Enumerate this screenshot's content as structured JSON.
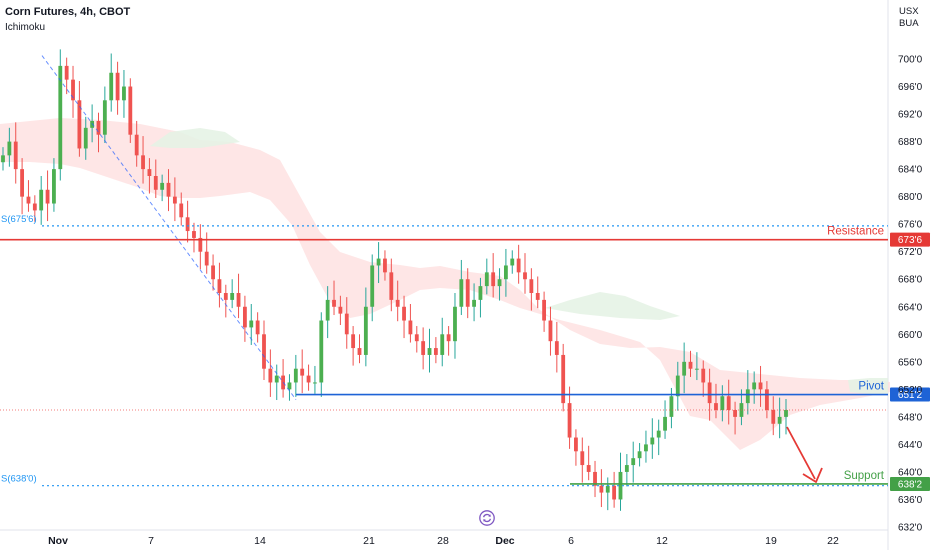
{
  "header": {
    "title": "Corn Futures, 4h, CBOT",
    "indicator": "Ichimoku",
    "currency": "USX",
    "unit": "BUA"
  },
  "colors": {
    "bull": "#26a69a",
    "bull_body": "#4caf50",
    "bear": "#ef5350",
    "resistance": "#e53935",
    "pivot": "#1e63d6",
    "support": "#43a047",
    "cloud_bear": "#fddede",
    "cloud_bull": "#e4f2e4",
    "dotted_blue": "#2196f3"
  },
  "icons": {
    "sync": "sync-icon",
    "arrow": "down-right-arrow"
  },
  "chart_data": {
    "type": "candlestick",
    "y_axis": {
      "range": [
        630,
        704
      ],
      "ticks": [
        "700'0",
        "696'0",
        "692'0",
        "688'0",
        "684'0",
        "680'0",
        "676'0",
        "672'0",
        "668'0",
        "664'0",
        "660'0",
        "656'0",
        "652'0",
        "648'0",
        "644'0",
        "640'0",
        "636'0",
        "632'0"
      ]
    },
    "x_axis": {
      "ticks": [
        "Nov",
        "7",
        "14",
        "21",
        "28",
        "Dec",
        "6",
        "12",
        "19",
        "22"
      ],
      "bold": [
        "Nov",
        "Dec"
      ]
    },
    "levels": [
      {
        "name": "Resistance",
        "value": 673.75,
        "tag": "673'6",
        "color": "#e53935"
      },
      {
        "name": "Pivot",
        "value": 651.25,
        "tag": "651'2",
        "color": "#1e63d6"
      },
      {
        "name": "Support",
        "value": 638.25,
        "tag": "638'2",
        "color": "#43a047"
      }
    ],
    "dotted_levels": [
      {
        "label": "S(675'6)",
        "value": 675.75
      },
      {
        "label": "S(638'0)",
        "value": 638.0
      }
    ],
    "current_price": 649.0,
    "closes": [
      686,
      688,
      684,
      680,
      679,
      678,
      681,
      679,
      684,
      699,
      697,
      694,
      687,
      690,
      691,
      689,
      694,
      698,
      694,
      696,
      689,
      686,
      684,
      683,
      681,
      682,
      680,
      679,
      677,
      675,
      674,
      672,
      670,
      668,
      666,
      665,
      666,
      664,
      661,
      662,
      660,
      655,
      653,
      654,
      652,
      653,
      655,
      654,
      653,
      653,
      662,
      665,
      664,
      663,
      660,
      658,
      657,
      664,
      670,
      671,
      669,
      665,
      664,
      662,
      660,
      659,
      657,
      658,
      657,
      660,
      659,
      664,
      668,
      664,
      665,
      667,
      669,
      667,
      668,
      670,
      671,
      669,
      668,
      666,
      665,
      662,
      659,
      657,
      650,
      645,
      643,
      641,
      640,
      638,
      637,
      638,
      636,
      640,
      641,
      642,
      643,
      644,
      645,
      646,
      648,
      651,
      654,
      656,
      655,
      655,
      653,
      650,
      649,
      651,
      649,
      648,
      650,
      652,
      653,
      652,
      649,
      647,
      648,
      649
    ]
  }
}
